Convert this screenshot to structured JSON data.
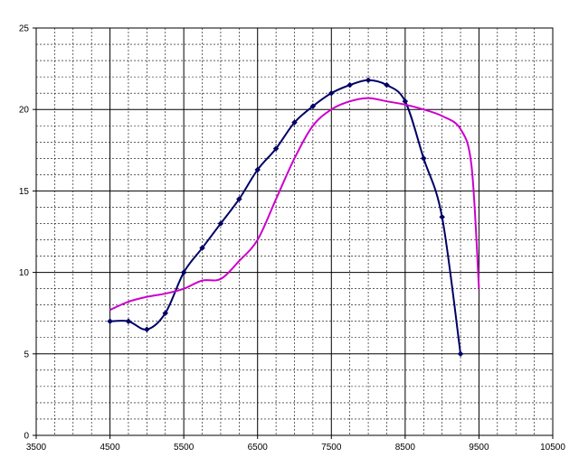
{
  "chart_data": {
    "type": "line",
    "title": "",
    "xlabel": "",
    "ylabel": "",
    "xlim": [
      3500,
      10500
    ],
    "ylim": [
      0,
      25
    ],
    "x_ticks": [
      "3500",
      "4500",
      "5500",
      "6500",
      "7500",
      "8500",
      "9500",
      "10500"
    ],
    "y_ticks": [
      "0",
      "5",
      "10",
      "15",
      "20",
      "25"
    ],
    "grid": {
      "major": true,
      "minor_x_step": 250,
      "minor_y_step": 1
    },
    "legend": "none",
    "series": [
      {
        "color": "#000066",
        "markers": true,
        "points": [
          [
            4500,
            7.0
          ],
          [
            4750,
            7.0
          ],
          [
            5000,
            6.5
          ],
          [
            5250,
            7.5
          ],
          [
            5500,
            10.0
          ],
          [
            5750,
            11.5
          ],
          [
            6000,
            13.0
          ],
          [
            6250,
            14.5
          ],
          [
            6500,
            16.3
          ],
          [
            6750,
            17.6
          ],
          [
            7000,
            19.2
          ],
          [
            7250,
            20.2
          ],
          [
            7500,
            21.0
          ],
          [
            7750,
            21.5
          ],
          [
            8000,
            21.8
          ],
          [
            8250,
            21.5
          ],
          [
            8500,
            20.5
          ],
          [
            8750,
            17.0
          ],
          [
            9000,
            13.4
          ],
          [
            9250,
            5.0
          ]
        ]
      },
      {
        "color": "#cc00cc",
        "markers": false,
        "points": [
          [
            4500,
            7.7
          ],
          [
            4750,
            8.2
          ],
          [
            5000,
            8.5
          ],
          [
            5250,
            8.7
          ],
          [
            5500,
            9.0
          ],
          [
            5750,
            9.5
          ],
          [
            6000,
            9.6
          ],
          [
            6250,
            10.7
          ],
          [
            6500,
            12.0
          ],
          [
            6750,
            14.5
          ],
          [
            7000,
            17.0
          ],
          [
            7250,
            19.0
          ],
          [
            7500,
            20.0
          ],
          [
            7750,
            20.5
          ],
          [
            8000,
            20.7
          ],
          [
            8250,
            20.5
          ],
          [
            8500,
            20.3
          ],
          [
            8750,
            20.0
          ],
          [
            9000,
            19.6
          ],
          [
            9250,
            18.8
          ],
          [
            9400,
            16.5
          ],
          [
            9500,
            9.0
          ]
        ]
      }
    ]
  }
}
